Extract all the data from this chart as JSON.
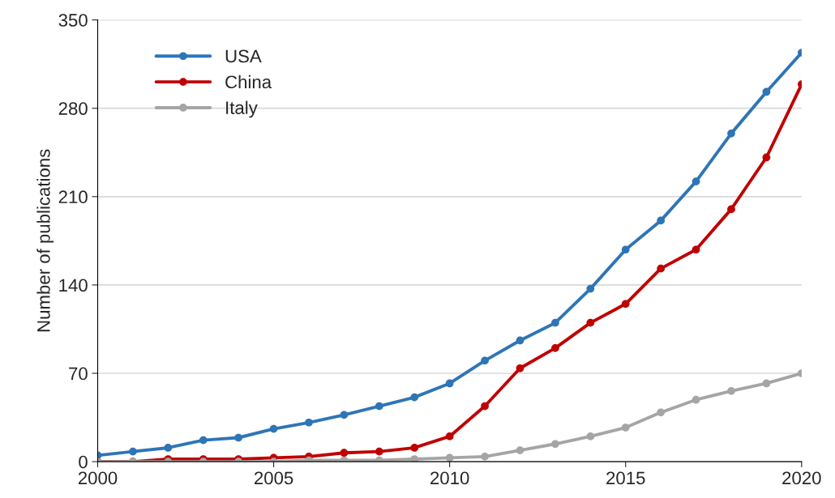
{
  "chart_data": {
    "type": "line",
    "ylabel": "Number of publications",
    "x": [
      2000,
      2001,
      2002,
      2003,
      2004,
      2005,
      2006,
      2007,
      2008,
      2009,
      2010,
      2011,
      2012,
      2013,
      2014,
      2015,
      2016,
      2017,
      2018,
      2019,
      2020
    ],
    "series": [
      {
        "name": "USA",
        "color": "#2e75b6",
        "values": [
          5,
          8,
          11,
          17,
          19,
          26,
          31,
          37,
          44,
          51,
          62,
          80,
          96,
          110,
          137,
          168,
          191,
          222,
          260,
          293,
          324
        ]
      },
      {
        "name": "China",
        "color": "#c00000",
        "values": [
          0,
          0,
          2,
          2,
          2,
          3,
          4,
          7,
          8,
          11,
          20,
          44,
          74,
          90,
          110,
          125,
          153,
          168,
          200,
          241,
          299
        ]
      },
      {
        "name": "Italy",
        "color": "#a5a5a5",
        "values": [
          0,
          0,
          0,
          0,
          0,
          0,
          1,
          1,
          1,
          2,
          3,
          4,
          9,
          14,
          20,
          27,
          39,
          49,
          56,
          62,
          70
        ]
      }
    ],
    "xlim": [
      2000,
      2020
    ],
    "xticks": [
      2000,
      2005,
      2010,
      2015,
      2020
    ],
    "ylim": [
      0,
      350
    ],
    "yticks": [
      0,
      70,
      140,
      210,
      280,
      350
    ],
    "grid": "y",
    "legend": "top left",
    "marker": "circle",
    "line_style": "solid"
  }
}
